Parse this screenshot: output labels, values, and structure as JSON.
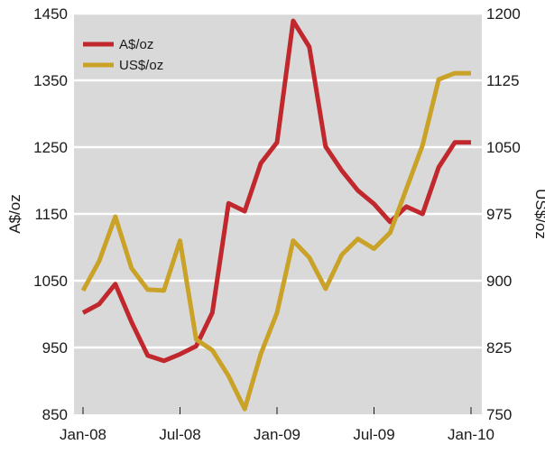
{
  "chart_data": {
    "type": "line",
    "x_tick_labels": [
      "Jan-08",
      "Jul-08",
      "Jan-09",
      "Jul-09",
      "Jan-10"
    ],
    "x_tick_months": [
      0,
      6,
      12,
      18,
      24
    ],
    "left_axis": {
      "label": "A$/oz",
      "ylim": [
        850,
        1450
      ],
      "ticks": [
        850,
        950,
        1050,
        1150,
        1250,
        1350,
        1450
      ]
    },
    "right_axis": {
      "label": "US$/oz",
      "ylim": [
        750,
        1200
      ],
      "ticks": [
        750,
        825,
        900,
        975,
        1050,
        1125,
        1200
      ]
    },
    "grid": "horizontal",
    "legend_position": "top-left",
    "series": [
      {
        "name": "A$/oz",
        "axis": "left",
        "color": "#c0282d",
        "x_months": [
          0,
          1,
          2,
          3,
          4,
          5,
          6,
          7,
          8,
          9,
          10,
          11,
          12,
          13,
          14,
          15,
          16,
          17,
          18,
          19,
          20,
          21,
          22,
          23,
          24
        ],
        "values": [
          1002,
          1015,
          1045,
          988,
          938,
          930,
          940,
          952,
          1002,
          1166,
          1154,
          1226,
          1257,
          1439,
          1400,
          1251,
          1215,
          1185,
          1165,
          1138,
          1161,
          1150,
          1220,
          1257,
          1257
        ]
      },
      {
        "name": "US$/oz",
        "axis": "right",
        "color": "#c9a227",
        "x_months": [
          0,
          1,
          2,
          3,
          4,
          5,
          6,
          7,
          8,
          9,
          10,
          11,
          12,
          13,
          14,
          15,
          16,
          17,
          18,
          19,
          20,
          21,
          22,
          23,
          24
        ],
        "values": [
          889,
          922,
          972,
          914,
          890,
          889,
          945,
          834,
          822,
          793,
          756,
          818,
          864,
          945,
          926,
          891,
          929,
          947,
          936,
          954,
          1003,
          1052,
          1126,
          1133,
          1133
        ]
      }
    ]
  }
}
